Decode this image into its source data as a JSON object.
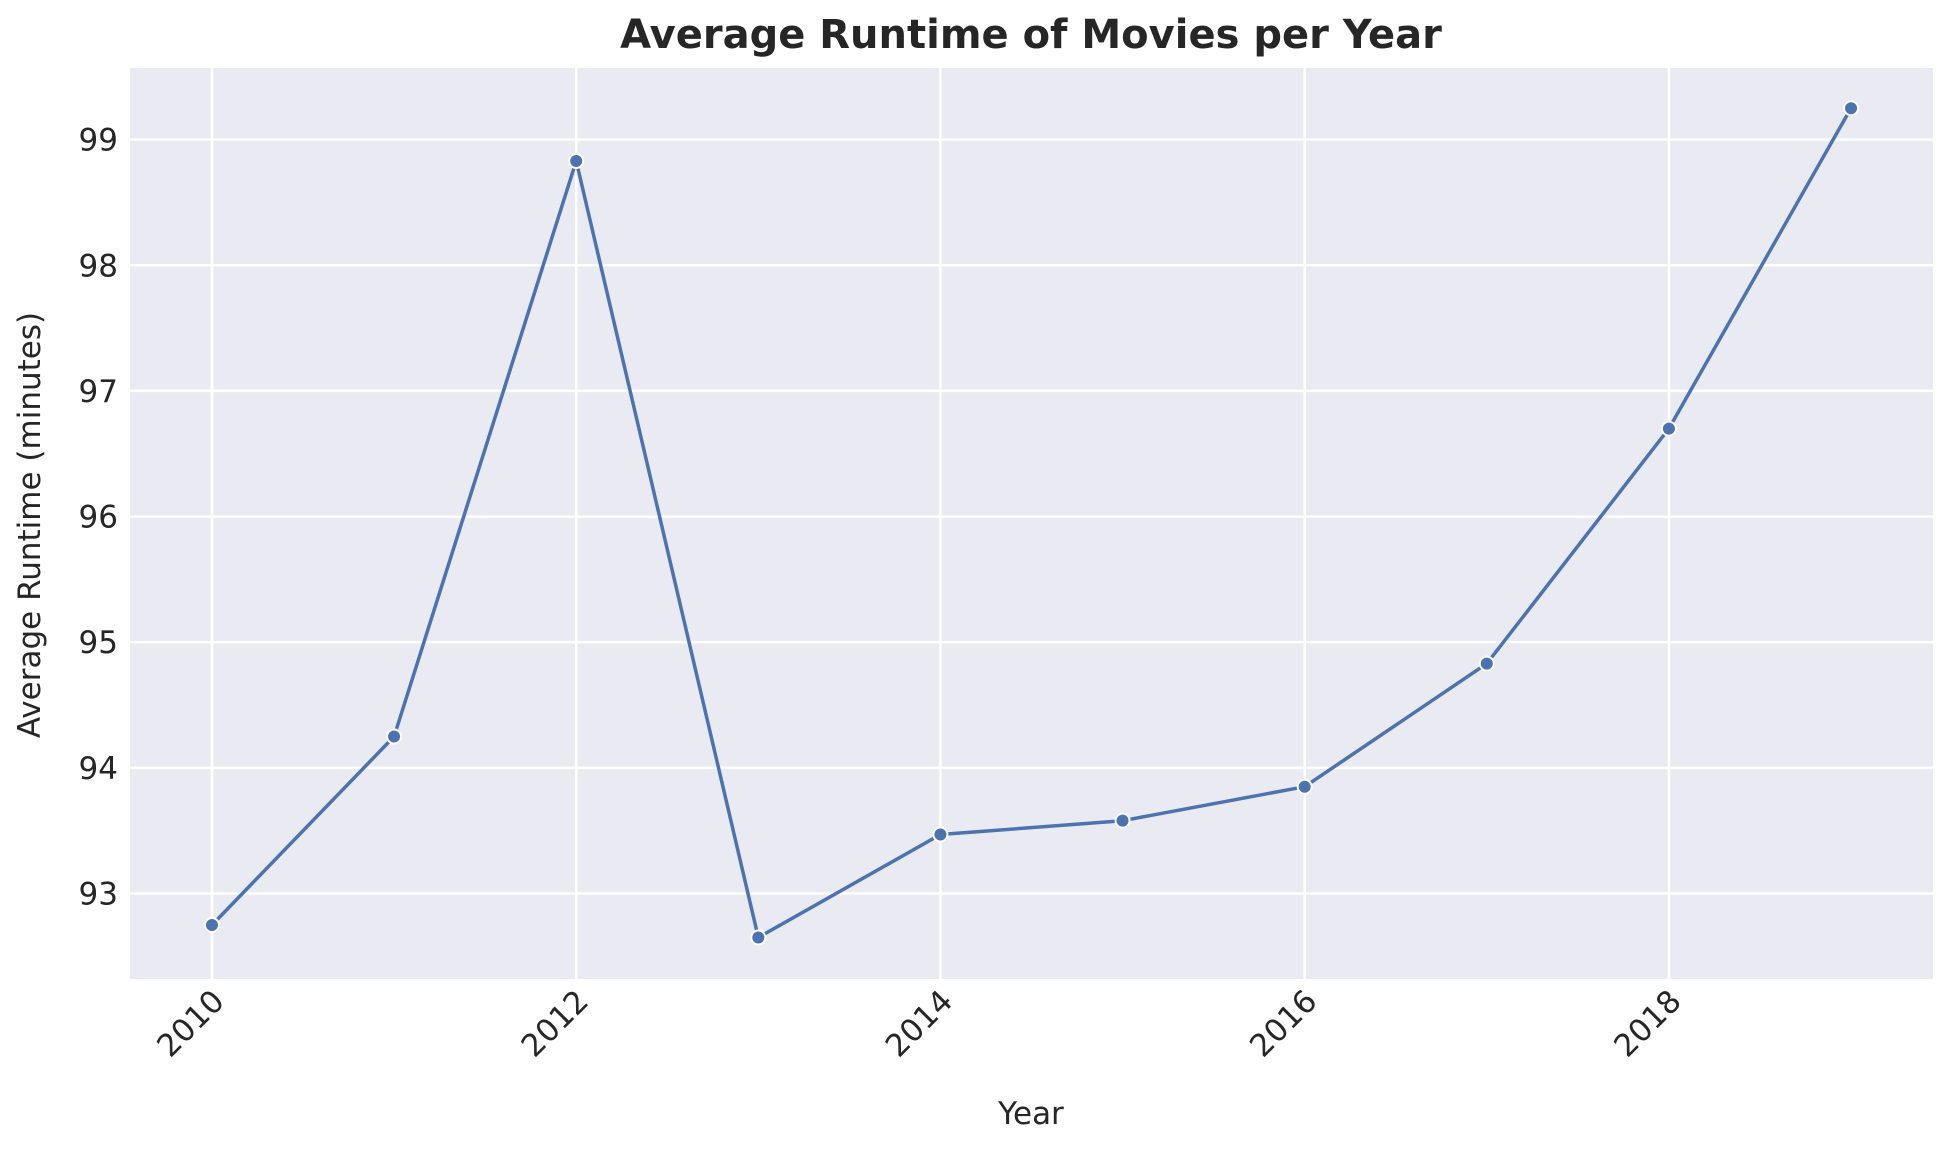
{
  "chart_data": {
    "type": "line",
    "title": "Average Runtime of Movies per Year",
    "xlabel": "Year",
    "ylabel": "Average Runtime (minutes)",
    "xlim": [
      2009.55,
      2019.45
    ],
    "ylim": [
      92.32,
      99.57
    ],
    "xticks": [
      2010,
      2012,
      2014,
      2016,
      2018
    ],
    "yticks": [
      93,
      94,
      95,
      96,
      97,
      98,
      99
    ],
    "grid": true,
    "legend": "none",
    "series": [
      {
        "x": [
          2010,
          2011,
          2012,
          2013,
          2014,
          2015,
          2016,
          2017,
          2018,
          2019
        ],
        "y": [
          92.75,
          94.25,
          98.83,
          92.65,
          93.47,
          93.58,
          93.85,
          94.83,
          96.7,
          99.25
        ],
        "color": "#4c72b0"
      }
    ]
  },
  "colors": {
    "plot_background": "#eaeaf2",
    "grid": "#ffffff",
    "series": "#4c72b0",
    "text": "#262626"
  }
}
